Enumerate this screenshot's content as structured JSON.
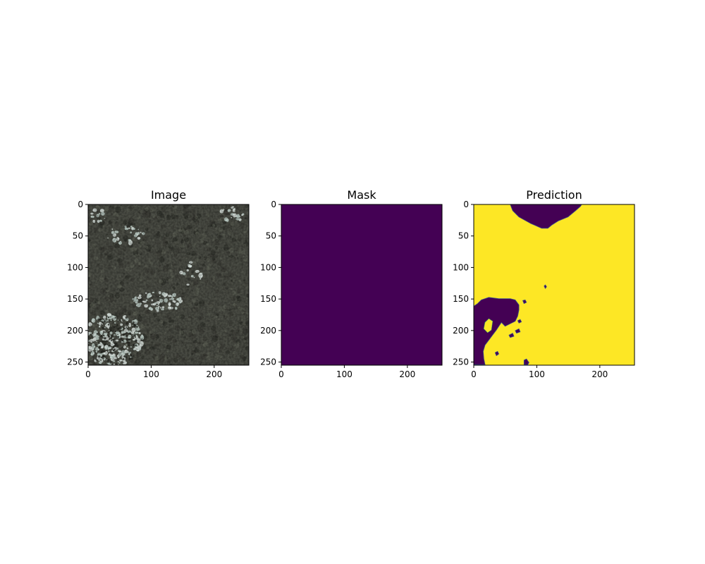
{
  "chart_data": [
    {
      "type": "heatmap",
      "title": "Image",
      "content": "rgb-satellite-image",
      "xlim": [
        0,
        255
      ],
      "ylim": [
        255,
        0
      ],
      "xticks": [
        0,
        100,
        200
      ],
      "yticks": [
        0,
        50,
        100,
        150,
        200,
        250
      ],
      "colors": {
        "dark": "#3a3b35",
        "mid": "#5e6155",
        "light": "#c6d6cf",
        "highlight": "#dfe9e4"
      }
    },
    {
      "type": "heatmap",
      "title": "Mask",
      "content": "binary-mask",
      "values": "all 0",
      "xlim": [
        0,
        255
      ],
      "ylim": [
        255,
        0
      ],
      "xticks": [
        0,
        100,
        200
      ],
      "yticks": [
        0,
        50,
        100,
        150,
        200,
        250
      ],
      "colormap": "viridis",
      "colors": {
        "0": "#440154",
        "1": "#fde725"
      }
    },
    {
      "type": "heatmap",
      "title": "Prediction",
      "content": "binary-mask",
      "xlim": [
        0,
        255
      ],
      "ylim": [
        255,
        0
      ],
      "xticks": [
        0,
        100,
        200
      ],
      "yticks": [
        0,
        50,
        100,
        150,
        200,
        250
      ],
      "colormap": "viridis",
      "colors": {
        "0": "#440154",
        "1": "#fde725"
      },
      "regions_class_0": [
        {
          "shape": "top-blob",
          "points": [
            [
              58,
              0
            ],
            [
              62,
              10
            ],
            [
              72,
              20
            ],
            [
              90,
              30
            ],
            [
              108,
              38
            ],
            [
              118,
              38
            ],
            [
              124,
              33
            ],
            [
              135,
              26
            ],
            [
              150,
              20
            ],
            [
              162,
              10
            ],
            [
              170,
              3
            ],
            [
              172,
              0
            ]
          ]
        },
        {
          "shape": "left-blob",
          "points": [
            [
              0,
              162
            ],
            [
              6,
              158
            ],
            [
              12,
              152
            ],
            [
              24,
              148
            ],
            [
              40,
              150
            ],
            [
              58,
              150
            ],
            [
              66,
              152
            ],
            [
              72,
              160
            ],
            [
              72,
              168
            ],
            [
              70,
              178
            ],
            [
              66,
              186
            ],
            [
              58,
              190
            ],
            [
              50,
              194
            ],
            [
              44,
              188
            ],
            [
              40,
              194
            ],
            [
              36,
              200
            ],
            [
              30,
              208
            ],
            [
              24,
              216
            ],
            [
              18,
              224
            ],
            [
              15,
              234
            ],
            [
              16,
              246
            ],
            [
              18,
              255
            ],
            [
              0,
              255
            ]
          ]
        },
        {
          "shape": "speck",
          "points": [
            [
              112,
              130
            ],
            [
              114,
              128
            ],
            [
              116,
              131
            ],
            [
              114,
              134
            ]
          ]
        },
        {
          "shape": "speck",
          "points": [
            [
              78,
              153
            ],
            [
              82,
              152
            ],
            [
              84,
              156
            ],
            [
              80,
              158
            ]
          ]
        },
        {
          "shape": "speck",
          "points": [
            [
              70,
              185
            ],
            [
              74,
              183
            ],
            [
              76,
              187
            ],
            [
              72,
              189
            ]
          ]
        },
        {
          "shape": "speck",
          "points": [
            [
              56,
              208
            ],
            [
              62,
              205
            ],
            [
              64,
              210
            ],
            [
              58,
              212
            ]
          ]
        },
        {
          "shape": "speck",
          "points": [
            [
              66,
              201
            ],
            [
              72,
              198
            ],
            [
              74,
              203
            ],
            [
              68,
              205
            ]
          ]
        },
        {
          "shape": "speck",
          "points": [
            [
              34,
              236
            ],
            [
              38,
              234
            ],
            [
              40,
              238
            ],
            [
              36,
              241
            ]
          ]
        },
        {
          "shape": "speck",
          "points": [
            [
              80,
              248
            ],
            [
              84,
              246
            ],
            [
              88,
              252
            ],
            [
              86,
              255
            ],
            [
              80,
              255
            ]
          ]
        }
      ],
      "regions_class_1": [
        {
          "shape": "hole",
          "points": [
            [
              18,
              188
            ],
            [
              24,
              182
            ],
            [
              30,
              186
            ],
            [
              28,
              200
            ],
            [
              22,
              204
            ],
            [
              16,
              198
            ]
          ]
        }
      ]
    }
  ]
}
